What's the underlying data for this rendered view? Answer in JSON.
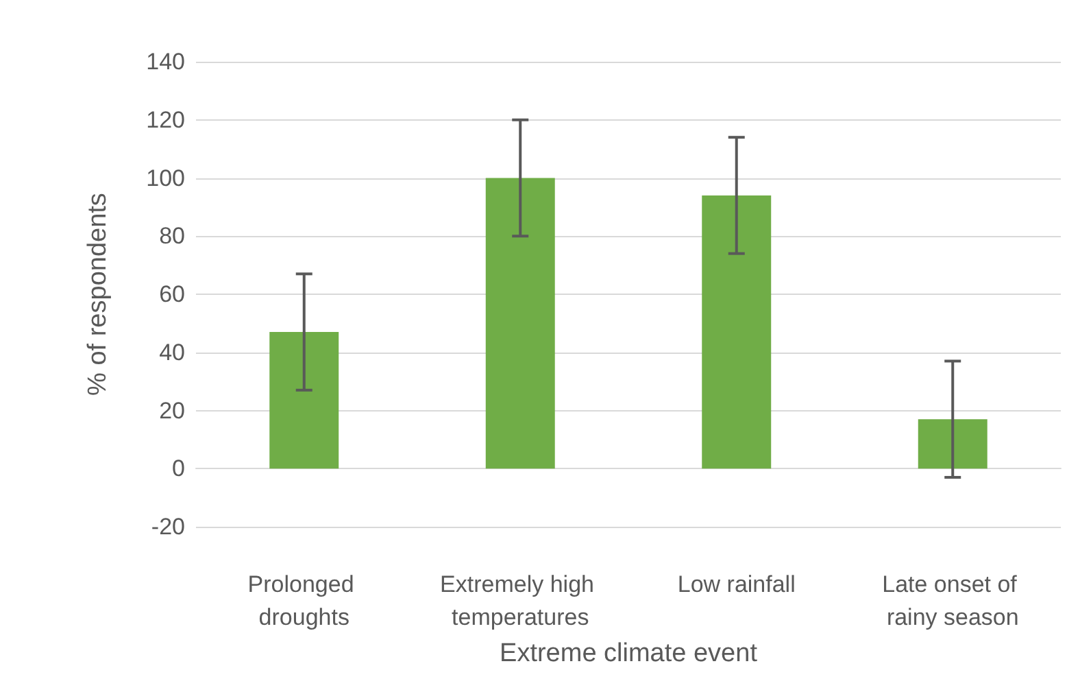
{
  "chart_data": {
    "type": "bar",
    "xlabel": "Extreme climate event",
    "ylabel": "% of respondents",
    "categories": [
      "Prolonged droughts",
      "Extremely high temperatures",
      "Low rainfall",
      "Late onset of rainy season"
    ],
    "values": [
      47,
      100,
      94,
      17
    ],
    "errors": [
      20,
      20,
      20,
      20
    ],
    "color": "#70ad47",
    "ylim": [
      -20,
      140
    ],
    "yticks": [
      -20,
      0,
      20,
      40,
      60,
      80,
      100,
      120,
      140
    ],
    "grid": "y"
  }
}
